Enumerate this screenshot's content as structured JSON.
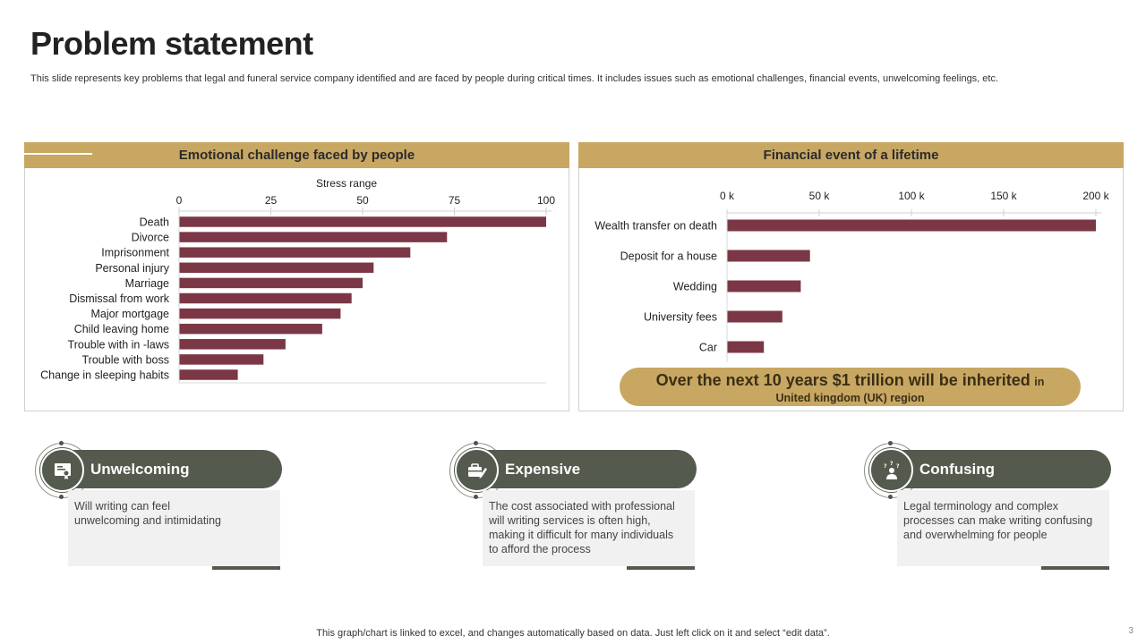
{
  "slide": {
    "title": "Problem statement",
    "subtitle": "This slide represents key problems that legal and funeral service company identified and are faced by people during critical times. It includes issues such as emotional challenges, financial events, unwelcoming feelings, etc.",
    "footer": "This graph/chart is linked to excel, and changes automatically based on data. Just left click on it and select “edit data”.",
    "page_number": "3"
  },
  "panels": {
    "left_title": "Emotional challenge faced by people",
    "right_title": "Financial event of a lifetime"
  },
  "callout": {
    "bold_text": "Over the next 10 years $1 trillion will be inherited",
    "small_text_1": "in",
    "small_text_2": "United kingdom (UK) region"
  },
  "cards": [
    {
      "label": "Unwelcoming",
      "icon": "certificate-icon",
      "text": [
        "Will writing can feel",
        "unwelcoming and intimidating"
      ]
    },
    {
      "label": "Expensive",
      "icon": "briefcase-icon",
      "text": [
        "The cost associated with professional",
        "will writing services is often high,",
        "making it difficult for many individuals",
        "to afford the process"
      ]
    },
    {
      "label": "Confusing",
      "icon": "confused-person-icon",
      "text": [
        "Legal terminology and complex",
        "processes can make writing confusing",
        "and overwhelming for people"
      ]
    }
  ],
  "colors": {
    "bar": "#7b3746",
    "gold": "#c8a762",
    "card": "#555a4e"
  },
  "chart_data": [
    {
      "type": "bar",
      "orientation": "horizontal",
      "title": "Emotional challenge faced by people",
      "xlabel": "Stress range",
      "xlim": [
        0,
        100
      ],
      "ticks": [
        0,
        25,
        50,
        75,
        100
      ],
      "tick_labels": [
        "0",
        "25",
        "50",
        "75",
        "100"
      ],
      "categories": [
        "Death",
        "Divorce",
        "Imprisonment",
        "Personal injury",
        "Marriage",
        "Dismissal from work",
        "Major mortgage",
        "Child leaving home",
        "Trouble with in -laws",
        "Trouble with boss",
        "Change in sleeping habits"
      ],
      "values": [
        100,
        73,
        63,
        53,
        50,
        47,
        44,
        39,
        29,
        23,
        16
      ],
      "axis_position": "top"
    },
    {
      "type": "bar",
      "orientation": "horizontal",
      "title": "Financial event of a lifetime",
      "xlim": [
        0,
        200000
      ],
      "ticks": [
        0,
        50000,
        100000,
        150000,
        200000
      ],
      "tick_labels": [
        "0 k",
        "50 k",
        "100 k",
        "150 k",
        "200 k"
      ],
      "categories": [
        "Wealth transfer on death",
        "Deposit for a house",
        "Wedding",
        "University fees",
        "Car"
      ],
      "values": [
        200000,
        45000,
        40000,
        30000,
        20000
      ],
      "axis_position": "top"
    }
  ]
}
